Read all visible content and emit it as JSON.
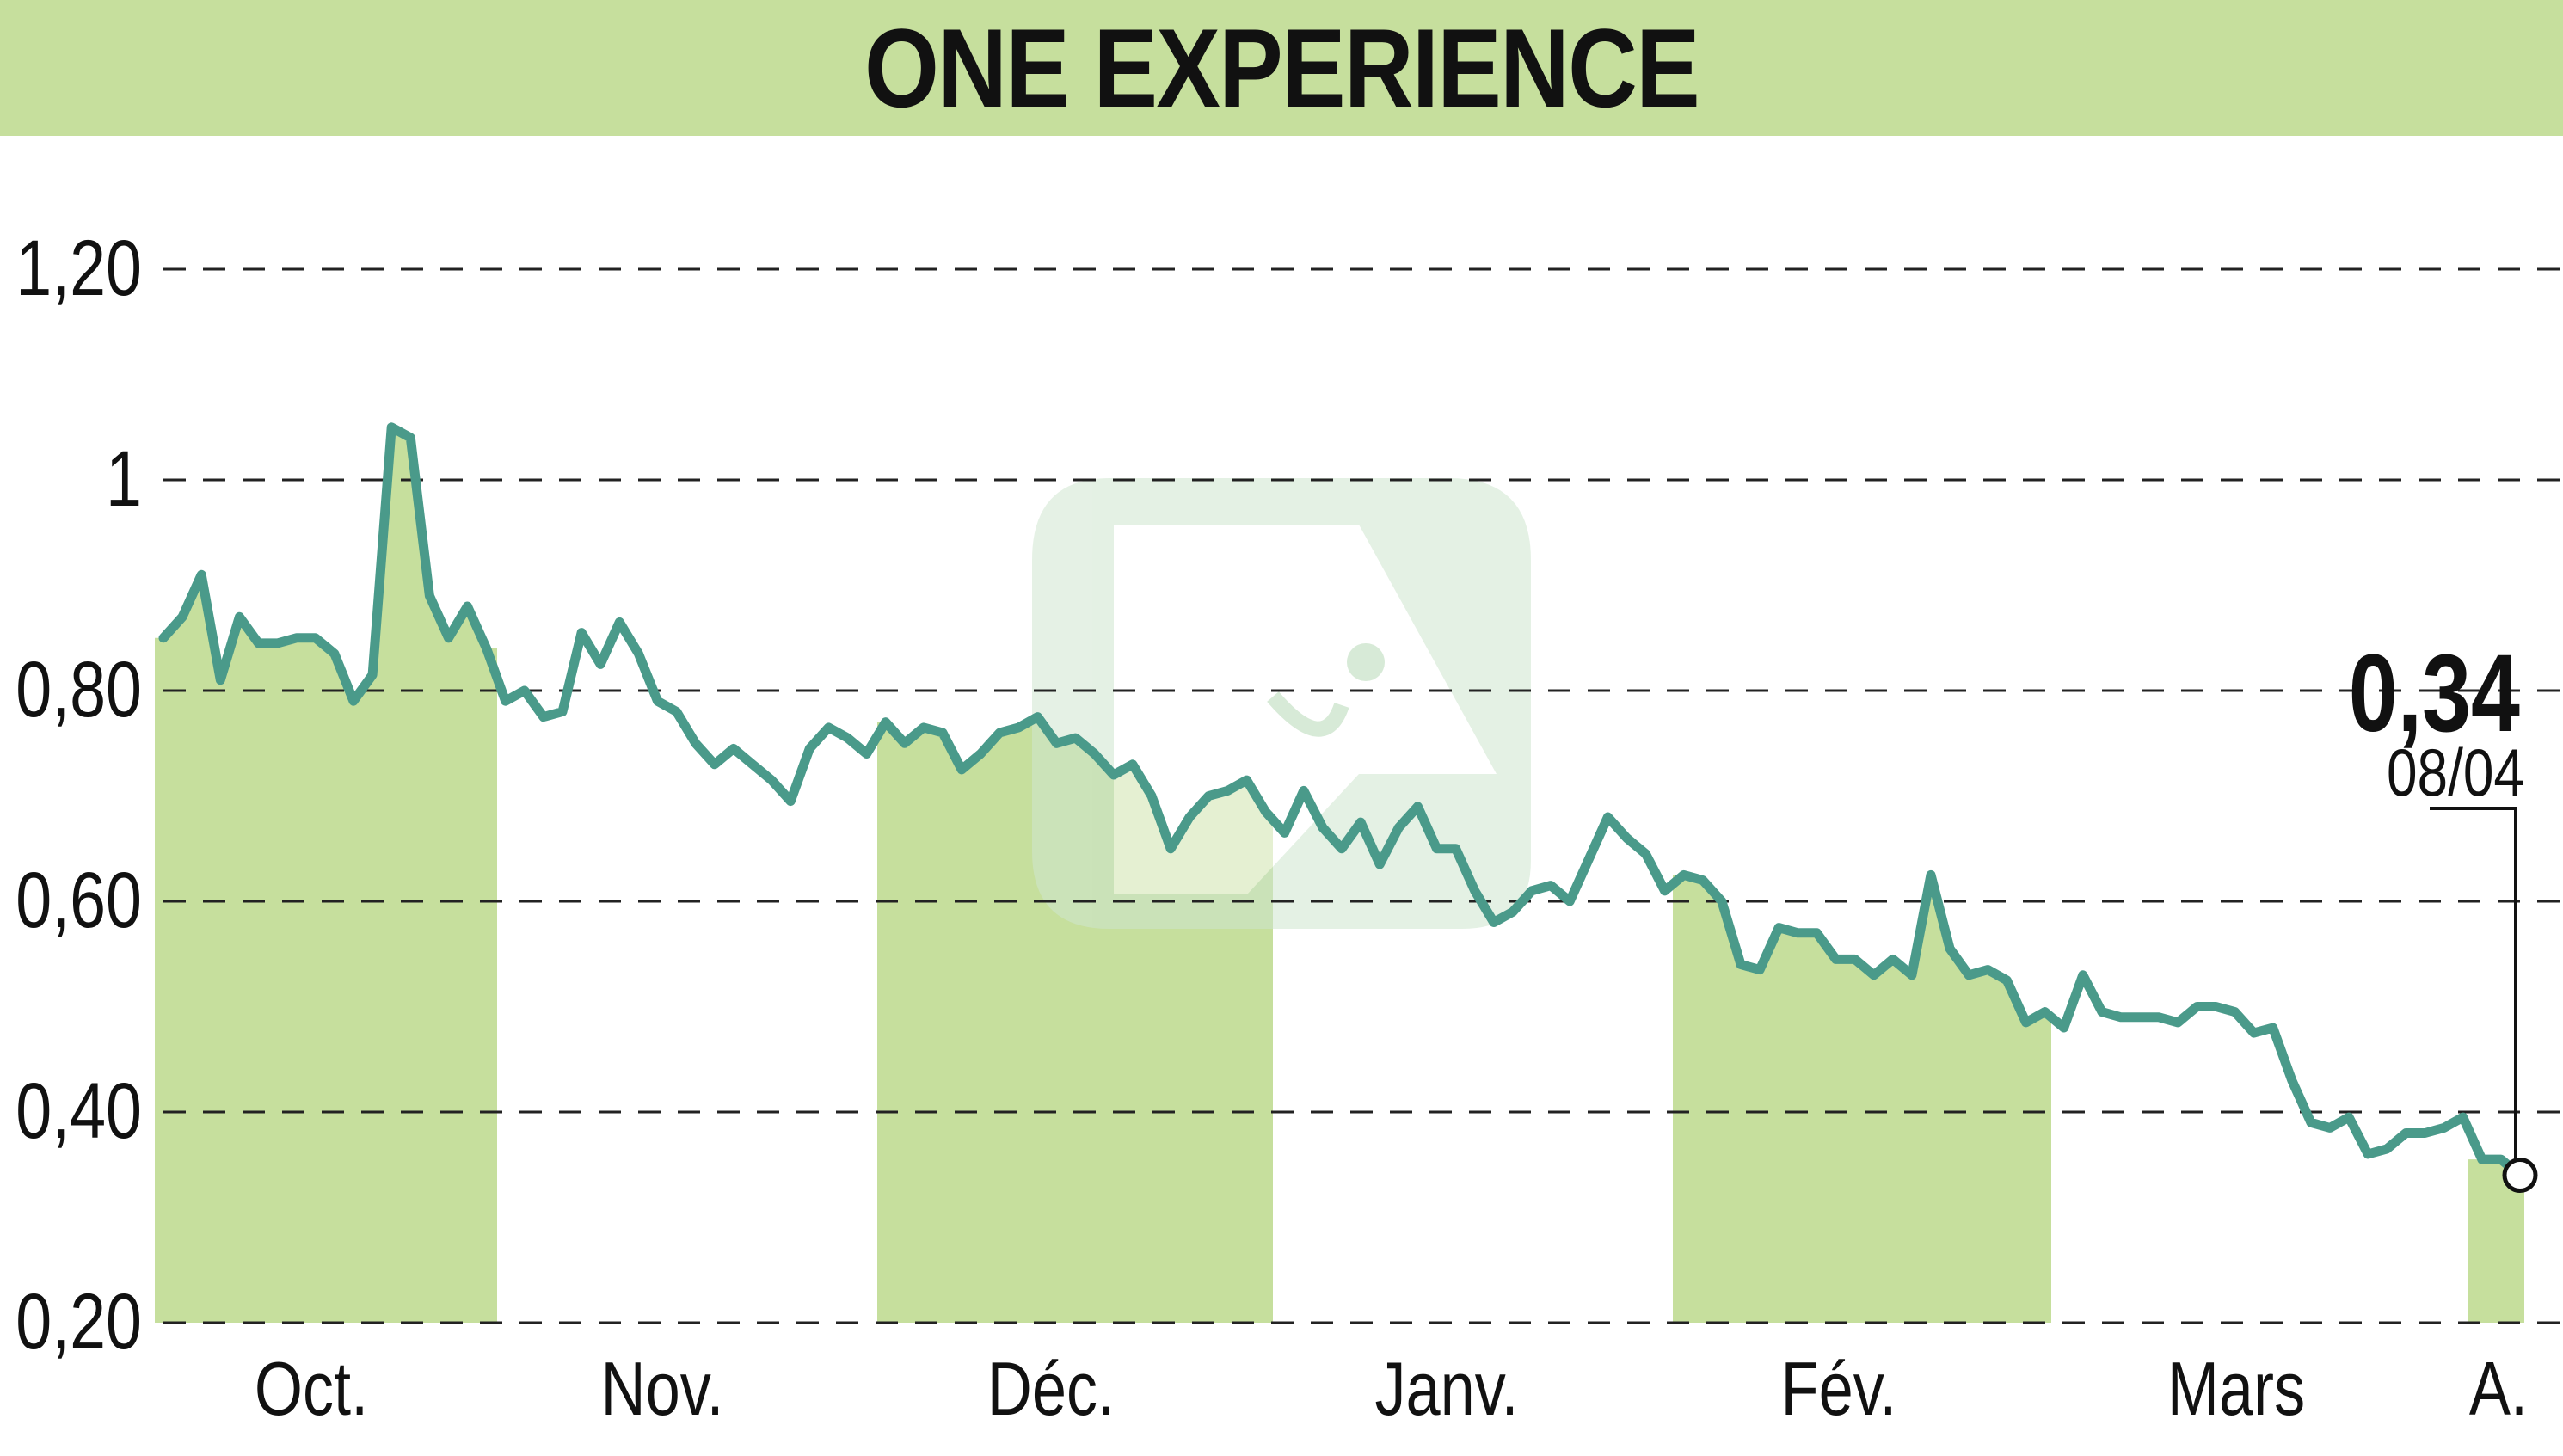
{
  "header": {
    "title": "ONE EXPERIENCE"
  },
  "colors": {
    "header_bg": "#c6df9d",
    "band_fill": "#c6df9d",
    "line": "#4a9a8a",
    "grid": "#222222",
    "text": "#111111",
    "watermark_green": "#a9cfa9"
  },
  "chart_data": {
    "type": "line",
    "title": "ONE EXPERIENCE",
    "ylim": [
      0.2,
      1.2
    ],
    "y_ticks": [
      {
        "value": 0.2,
        "label": "0,20"
      },
      {
        "value": 0.4,
        "label": "0,40"
      },
      {
        "value": 0.6,
        "label": "0,60"
      },
      {
        "value": 0.8,
        "label": "0,80"
      },
      {
        "value": 1.0,
        "label": "1"
      },
      {
        "value": 1.2,
        "label": "1,20"
      }
    ],
    "grid": true,
    "months": [
      {
        "label": "Oct.",
        "shaded": true
      },
      {
        "label": "Nov.",
        "shaded": false
      },
      {
        "label": "Déc.",
        "shaded": true
      },
      {
        "label": "Janv.",
        "shaded": false
      },
      {
        "label": "Fév.",
        "shaded": true
      },
      {
        "label": "Mars",
        "shaded": false
      },
      {
        "label": "A.",
        "shaded": true
      }
    ],
    "series": [
      {
        "values": [
          0.85,
          0.87,
          0.91,
          0.81,
          0.87,
          0.845,
          0.845,
          0.85,
          0.85,
          0.835,
          0.79,
          0.815,
          1.05,
          1.04,
          0.89,
          0.85,
          0.88,
          0.84,
          0.79,
          0.8,
          0.775,
          0.78,
          0.855,
          0.825,
          0.865,
          0.835,
          0.79,
          0.78,
          0.75,
          0.73,
          0.745,
          0.73,
          0.715,
          0.695,
          0.745,
          0.765,
          0.755,
          0.74,
          0.77,
          0.75,
          0.765,
          0.76,
          0.725,
          0.74,
          0.76,
          0.765,
          0.775,
          0.75,
          0.755,
          0.74,
          0.72,
          0.73,
          0.7,
          0.65,
          0.68,
          0.7,
          0.705,
          0.715,
          0.685,
          0.665,
          0.705,
          0.67,
          0.65,
          0.675,
          0.635,
          0.67,
          0.69,
          0.65,
          0.65,
          0.61,
          0.58,
          0.59,
          0.61,
          0.615,
          0.6,
          0.64,
          0.68,
          0.66,
          0.645,
          0.61,
          0.625,
          0.62,
          0.6,
          0.54,
          0.535,
          0.575,
          0.57,
          0.57,
          0.545,
          0.545,
          0.53,
          0.545,
          0.53,
          0.625,
          0.555,
          0.53,
          0.535,
          0.525,
          0.485,
          0.495,
          0.48,
          0.53,
          0.495,
          0.49,
          0.49,
          0.49,
          0.485,
          0.5,
          0.5,
          0.495,
          0.475,
          0.48,
          0.43,
          0.39,
          0.385,
          0.395,
          0.36,
          0.365,
          0.38,
          0.38,
          0.385,
          0.395,
          0.355,
          0.355,
          0.34
        ]
      }
    ],
    "last": {
      "value_label": "0,34",
      "date_label": "08/04"
    }
  }
}
